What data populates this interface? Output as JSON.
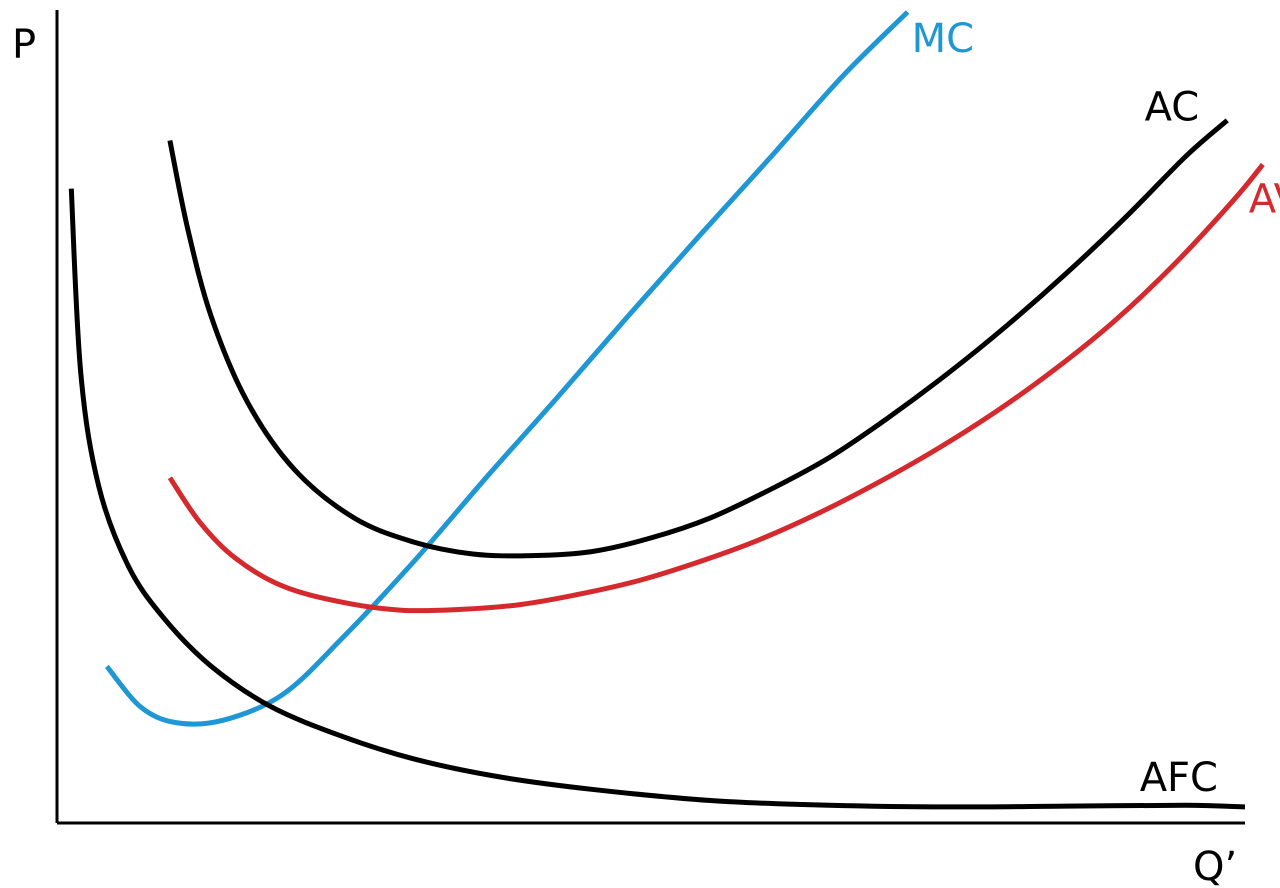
{
  "chart_data": {
    "type": "line",
    "title": "",
    "xlabel": "Q’",
    "ylabel": "P",
    "xlim": [
      0,
      10
    ],
    "ylim": [
      0,
      10
    ],
    "grid": false,
    "legend": "none",
    "series": [
      {
        "name": "MC",
        "color": "#1f97d4",
        "x": [
          0.42,
          0.7,
          1.0,
          1.4,
          1.9,
          2.4,
          3.0,
          3.6,
          4.2,
          4.8,
          5.4,
          6.0,
          6.6,
          7.16
        ],
        "y": [
          1.95,
          1.45,
          1.25,
          1.28,
          1.6,
          2.3,
          3.25,
          4.28,
          5.28,
          6.3,
          7.3,
          8.28,
          9.28,
          10.1
        ]
      },
      {
        "name": "AC",
        "color": "#000000",
        "x": [
          0.95,
          1.1,
          1.3,
          1.6,
          2.0,
          2.5,
          3.0,
          3.5,
          4.0,
          4.5,
          5.0,
          5.5,
          6.0,
          6.5,
          7.0,
          7.5,
          8.0,
          8.5,
          9.0,
          9.5,
          9.85
        ],
        "y": [
          8.5,
          7.4,
          6.3,
          5.25,
          4.4,
          3.8,
          3.5,
          3.35,
          3.33,
          3.38,
          3.55,
          3.8,
          4.15,
          4.55,
          5.05,
          5.6,
          6.2,
          6.85,
          7.55,
          8.3,
          8.75
        ]
      },
      {
        "name": "AVC",
        "color": "#d42a2e",
        "x": [
          0.95,
          1.2,
          1.5,
          1.9,
          2.4,
          2.9,
          3.4,
          3.9,
          4.4,
          4.9,
          5.4,
          5.9,
          6.4,
          6.9,
          7.4,
          7.9,
          8.4,
          8.9,
          9.4,
          9.9,
          10.15
        ],
        "y": [
          4.3,
          3.75,
          3.3,
          2.95,
          2.75,
          2.65,
          2.66,
          2.72,
          2.85,
          3.02,
          3.25,
          3.52,
          3.85,
          4.23,
          4.65,
          5.12,
          5.65,
          6.25,
          6.95,
          7.75,
          8.2
        ]
      },
      {
        "name": "AFC",
        "color": "#000000",
        "x": [
          0.12,
          0.2,
          0.35,
          0.6,
          0.9,
          1.3,
          1.8,
          2.4,
          3.0,
          3.7,
          4.5,
          5.5,
          6.5,
          7.5,
          8.5,
          9.5,
          10.0
        ],
        "y": [
          7.9,
          5.6,
          4.2,
          3.2,
          2.55,
          1.95,
          1.45,
          1.08,
          0.8,
          0.58,
          0.42,
          0.28,
          0.22,
          0.2,
          0.21,
          0.22,
          0.2
        ]
      }
    ]
  }
}
